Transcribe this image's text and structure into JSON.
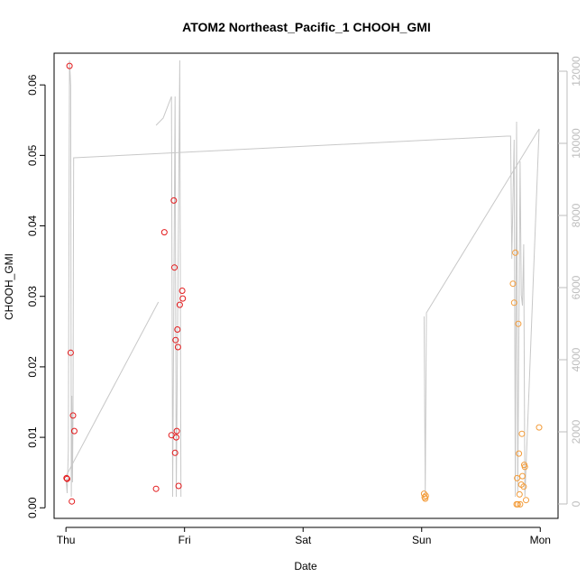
{
  "chart_data": {
    "type": "scatter",
    "title": "ATOM2 Northeast_Pacific_1 CHOOH_GMI",
    "xlabel": "Date",
    "ylabel": "CHOOH_GMI",
    "x_ticks": [
      "Thu",
      "Fri",
      "Sat",
      "Sun",
      "Mon"
    ],
    "x_range_days": [
      -0.1,
      4.15
    ],
    "ylim": [
      -0.0015,
      0.0645
    ],
    "y_ticks": [
      0.0,
      0.01,
      0.02,
      0.03,
      0.04,
      0.05,
      0.06
    ],
    "y_tick_labels": [
      "0.00",
      "0.01",
      "0.02",
      "0.03",
      "0.04",
      "0.05",
      "0.06"
    ],
    "y2_range": [
      -400,
      12500
    ],
    "y2_ticks": [
      0,
      2000,
      4000,
      6000,
      8000,
      10000,
      12000
    ],
    "y2_tick_labels": [
      "0",
      "2000",
      "4000",
      "6000",
      "8000",
      "10000",
      "12000"
    ],
    "grid": false,
    "colors": {
      "flight1_points": "#e31a1c",
      "flight2_points": "#f39c3a",
      "altitude_line": "#c8c8c8",
      "axis": "#000000",
      "right_axis": "#bdbdbd"
    },
    "series": [
      {
        "marker": "circle-open",
        "color": "#e31a1c",
        "points": [
          {
            "x": 0.005,
            "y": 0.0042
          },
          {
            "x": 0.01,
            "y": 0.0041
          },
          {
            "x": 0.03,
            "y": 0.0627
          },
          {
            "x": 0.04,
            "y": 0.022
          },
          {
            "x": 0.05,
            "y": 0.0009
          },
          {
            "x": 0.06,
            "y": 0.0131
          },
          {
            "x": 0.07,
            "y": 0.0109
          },
          {
            "x": 0.76,
            "y": 0.0027
          },
          {
            "x": 0.83,
            "y": 0.0391
          },
          {
            "x": 0.89,
            "y": 0.0103
          },
          {
            "x": 0.91,
            "y": 0.0436
          },
          {
            "x": 0.915,
            "y": 0.0341
          },
          {
            "x": 0.92,
            "y": 0.0078
          },
          {
            "x": 0.925,
            "y": 0.0238
          },
          {
            "x": 0.93,
            "y": 0.01
          },
          {
            "x": 0.935,
            "y": 0.0109
          },
          {
            "x": 0.94,
            "y": 0.0253
          },
          {
            "x": 0.945,
            "y": 0.0228
          },
          {
            "x": 0.95,
            "y": 0.0031
          },
          {
            "x": 0.96,
            "y": 0.0288
          },
          {
            "x": 0.98,
            "y": 0.0308
          },
          {
            "x": 0.985,
            "y": 0.0297
          }
        ]
      },
      {
        "marker": "circle-open",
        "color": "#f39c3a",
        "points": [
          {
            "x": 3.02,
            "y": 0.002
          },
          {
            "x": 3.025,
            "y": 0.0015
          },
          {
            "x": 3.03,
            "y": 0.0013
          },
          {
            "x": 3.035,
            "y": 0.0017
          },
          {
            "x": 3.77,
            "y": 0.0318
          },
          {
            "x": 3.78,
            "y": 0.0291
          },
          {
            "x": 3.79,
            "y": 0.0362
          },
          {
            "x": 3.8,
            "y": 0.0005
          },
          {
            "x": 3.805,
            "y": 0.0042
          },
          {
            "x": 3.81,
            "y": 0.0005
          },
          {
            "x": 3.815,
            "y": 0.0261
          },
          {
            "x": 3.82,
            "y": 0.0077
          },
          {
            "x": 3.825,
            "y": 0.0019
          },
          {
            "x": 3.83,
            "y": 0.0005
          },
          {
            "x": 3.84,
            "y": 0.0033
          },
          {
            "x": 3.845,
            "y": 0.0105
          },
          {
            "x": 3.85,
            "y": 0.0045
          },
          {
            "x": 3.86,
            "y": 0.003
          },
          {
            "x": 3.865,
            "y": 0.0061
          },
          {
            "x": 3.87,
            "y": 0.0058
          },
          {
            "x": 3.88,
            "y": 0.0011
          },
          {
            "x": 3.99,
            "y": 0.0114
          }
        ]
      },
      {
        "type": "line",
        "axis": "right",
        "color": "#c8c8c8",
        "segments": [
          [
            {
              "x": 0.0,
              "y": 700
            },
            {
              "x": 0.01,
              "y": 300
            },
            {
              "x": 0.02,
              "y": 1500
            },
            {
              "x": 0.03,
              "y": 12300
            },
            {
              "x": 0.04,
              "y": 11600
            },
            {
              "x": 0.045,
              "y": 200
            },
            {
              "x": 0.05,
              "y": 3000
            },
            {
              "x": 0.055,
              "y": 600
            },
            {
              "x": 0.06,
              "y": 2500
            },
            {
              "x": 0.065,
              "y": 9600
            },
            {
              "x": 0.07,
              "y": 9600
            },
            {
              "x": 3.72,
              "y": 10200
            },
            {
              "x": 3.75,
              "y": 10200
            },
            {
              "x": 3.76,
              "y": 6800
            },
            {
              "x": 3.78,
              "y": 10100
            },
            {
              "x": 3.79,
              "y": 200
            },
            {
              "x": 3.8,
              "y": 10600
            },
            {
              "x": 3.81,
              "y": 300
            },
            {
              "x": 3.83,
              "y": 9500
            },
            {
              "x": 3.84,
              "y": 5800
            },
            {
              "x": 3.85,
              "y": 5500
            },
            {
              "x": 3.86,
              "y": 7200
            },
            {
              "x": 3.87,
              "y": 200
            },
            {
              "x": 3.99,
              "y": 10400
            }
          ],
          [
            {
              "x": 0.005,
              "y": 800
            },
            {
              "x": 0.78,
              "y": 5600
            }
          ],
          [
            {
              "x": 0.76,
              "y": 10500
            },
            {
              "x": 0.82,
              "y": 10700
            },
            {
              "x": 0.89,
              "y": 11300
            },
            {
              "x": 0.9,
              "y": 200
            },
            {
              "x": 0.92,
              "y": 11300
            },
            {
              "x": 0.93,
              "y": 200
            },
            {
              "x": 0.96,
              "y": 12300
            },
            {
              "x": 0.97,
              "y": 200
            }
          ],
          [
            {
              "x": 3.02,
              "y": 5200
            },
            {
              "x": 3.03,
              "y": 300
            },
            {
              "x": 3.04,
              "y": 5300
            },
            {
              "x": 3.99,
              "y": 10400
            }
          ]
        ]
      }
    ]
  }
}
